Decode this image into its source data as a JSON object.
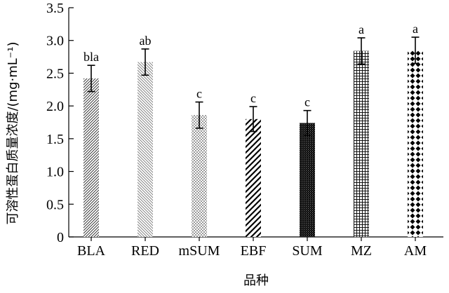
{
  "chart_data": {
    "type": "bar",
    "categories": [
      "BLA",
      "RED",
      "mSUM",
      "EBF",
      "SUM",
      "MZ",
      "AM"
    ],
    "values": [
      2.42,
      2.67,
      1.86,
      1.8,
      1.74,
      2.84,
      2.85
    ],
    "errors": [
      0.2,
      0.2,
      0.2,
      0.19,
      0.19,
      0.2,
      0.2
    ],
    "significance": [
      "bla",
      "ab",
      "c",
      "c",
      "c",
      "a",
      "a"
    ],
    "patterns": [
      "diag-right-dense",
      "diag-left",
      "dots",
      "diag-bold",
      "crosshatch",
      "grid",
      "diamonds"
    ],
    "ylabel": "可溶性蛋白质量浓度/(mg·mL⁻¹)",
    "xlabel": "品种",
    "ylim": [
      0,
      3.5
    ],
    "yticks": [
      "0",
      "0.5",
      "1.0",
      "1.5",
      "2.0",
      "2.5",
      "3.0",
      "3.5"
    ],
    "grid": false,
    "colors": {
      "ink": "#000000",
      "background": "#ffffff"
    }
  }
}
